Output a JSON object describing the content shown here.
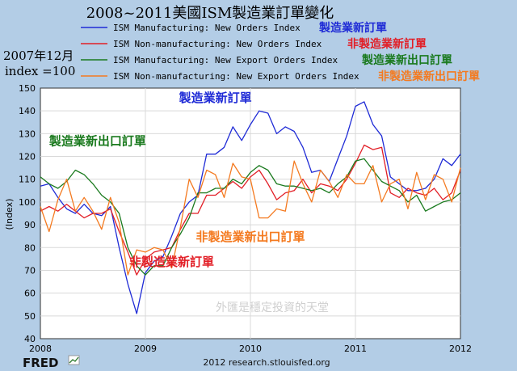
{
  "chart_data": {
    "type": "line",
    "title": "2008~2011美國ISM製造業訂單變化",
    "index_note_line1": "2007年12月",
    "index_note_line2": "index =100",
    "ylabel": "(Index)",
    "ylim": [
      40,
      150
    ],
    "yticks": [
      40,
      50,
      60,
      70,
      80,
      90,
      100,
      110,
      120,
      130,
      140,
      150
    ],
    "xlim": [
      "2008-01",
      "2012-01"
    ],
    "xticks": [
      "2008",
      "2009",
      "2010",
      "2011",
      "2012"
    ],
    "grid": true,
    "legend_placement": "top",
    "source": "2012 research.stlouisfed.org",
    "fred_logo": "FRED",
    "watermark": "外匯是穩定投資的天堂",
    "series": [
      {
        "name": "ISM Manufacturing: New Orders Index",
        "label_cn": "製造業新訂單",
        "color": "#1f2bd6",
        "values": [
          107,
          108,
          102,
          97,
          95,
          99,
          95,
          94,
          98,
          80,
          64,
          51,
          69,
          74,
          76,
          85,
          95,
          100,
          103,
          121,
          121,
          124,
          133,
          127,
          134,
          140,
          139,
          130,
          133,
          131,
          124,
          113,
          114,
          109,
          119,
          129,
          142,
          144,
          134,
          129,
          111,
          108,
          105,
          105,
          106,
          110,
          119,
          116,
          121
        ]
      },
      {
        "name": "ISM Non-manufacturing: New Orders Index",
        "label_cn": "非製造業新訂單",
        "color": "#e21e26",
        "values": [
          96,
          98,
          96,
          99,
          96,
          93,
          95,
          95,
          97,
          87,
          78,
          68,
          75,
          78,
          79,
          80,
          88,
          95,
          95,
          103,
          103,
          106,
          109,
          106,
          111,
          114,
          108,
          101,
          104,
          105,
          110,
          104,
          108,
          107,
          105,
          110,
          117,
          125,
          123,
          124,
          104,
          102,
          106,
          104,
          103,
          106,
          101,
          104,
          114
        ]
      },
      {
        "name": "ISM Manufacturing: New Export Orders Index",
        "label_cn": "製造業新出口訂單",
        "color": "#1a7a1e",
        "values": [
          111,
          108,
          106,
          109,
          114,
          112,
          108,
          103,
          100,
          95,
          80,
          72,
          68,
          72,
          72,
          80,
          86,
          93,
          104,
          104,
          106,
          106,
          110,
          108,
          113,
          116,
          114,
          108,
          107,
          107,
          106,
          105,
          106,
          104,
          108,
          111,
          118,
          119,
          114,
          109,
          107,
          105,
          100,
          103,
          96,
          98,
          100,
          101,
          104
        ]
      },
      {
        "name": "ISM Non-manufacturing: New Export Orders Index",
        "label_cn": "非製造業新出口訂單",
        "color": "#f47a20",
        "values": [
          98,
          87,
          101,
          110,
          96,
          102,
          96,
          88,
          102,
          91,
          68,
          79,
          78,
          80,
          79,
          71,
          89,
          110,
          102,
          114,
          112,
          102,
          117,
          111,
          110,
          93,
          93,
          97,
          96,
          118,
          108,
          100,
          114,
          109,
          102,
          112,
          108,
          108,
          116,
          100,
          108,
          110,
          97,
          113,
          101,
          112,
          110,
          100,
          115
        ]
      }
    ],
    "annotations": [
      {
        "text": "製造業新訂單",
        "series": 0,
        "x": "2009-09",
        "y": 144
      },
      {
        "text": "製造業新出口訂單",
        "series": 2,
        "x": "2008-02",
        "y": 125
      },
      {
        "text": "非製造業新出口訂單",
        "series": 3,
        "x": "2010-01",
        "y": 83
      },
      {
        "text": "非製造業新訂單",
        "series": 1,
        "x": "2009-04",
        "y": 72
      }
    ]
  }
}
